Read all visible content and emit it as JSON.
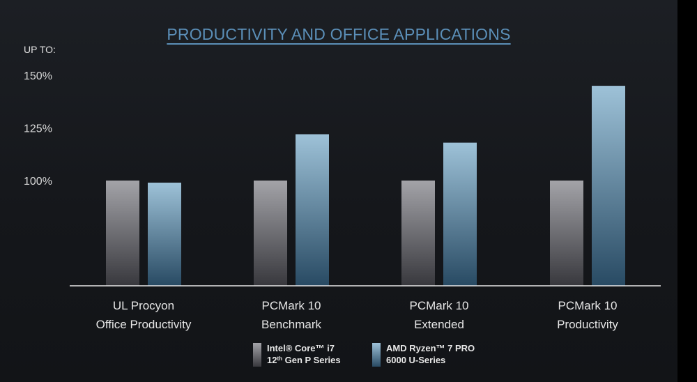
{
  "chart_data": {
    "type": "bar",
    "title": "PRODUCTIVITY AND OFFICE APPLICATIONS",
    "ylabel": "UP TO:",
    "categories": [
      [
        "UL Procyon",
        "Office Productivity"
      ],
      [
        "PCMark 10",
        "Benchmark"
      ],
      [
        "PCMark 10",
        "Extended"
      ],
      [
        "PCMark 10",
        "Productivity"
      ]
    ],
    "yticks": [
      {
        "value": 100,
        "label": "100%"
      },
      {
        "value": 125,
        "label": "125%"
      },
      {
        "value": 150,
        "label": "150%"
      }
    ],
    "ylim": [
      50,
      150
    ],
    "grid": false,
    "legend_position": "bottom-center",
    "series": [
      {
        "name_lines": [
          [
            "Intel® Core™ i7"
          ],
          [
            "12",
            "th",
            " Gen P Series"
          ]
        ],
        "values": [
          100,
          100,
          100,
          100
        ],
        "color_top": "#a3a3a8",
        "color_bottom": "#38383d"
      },
      {
        "name_lines": [
          [
            "AMD Ryzen™ 7 PRO"
          ],
          [
            "6000 U-Series"
          ]
        ],
        "values": [
          99,
          122,
          118,
          145
        ],
        "color_top": "#9ec2d8",
        "color_bottom": "#284a63"
      }
    ]
  }
}
